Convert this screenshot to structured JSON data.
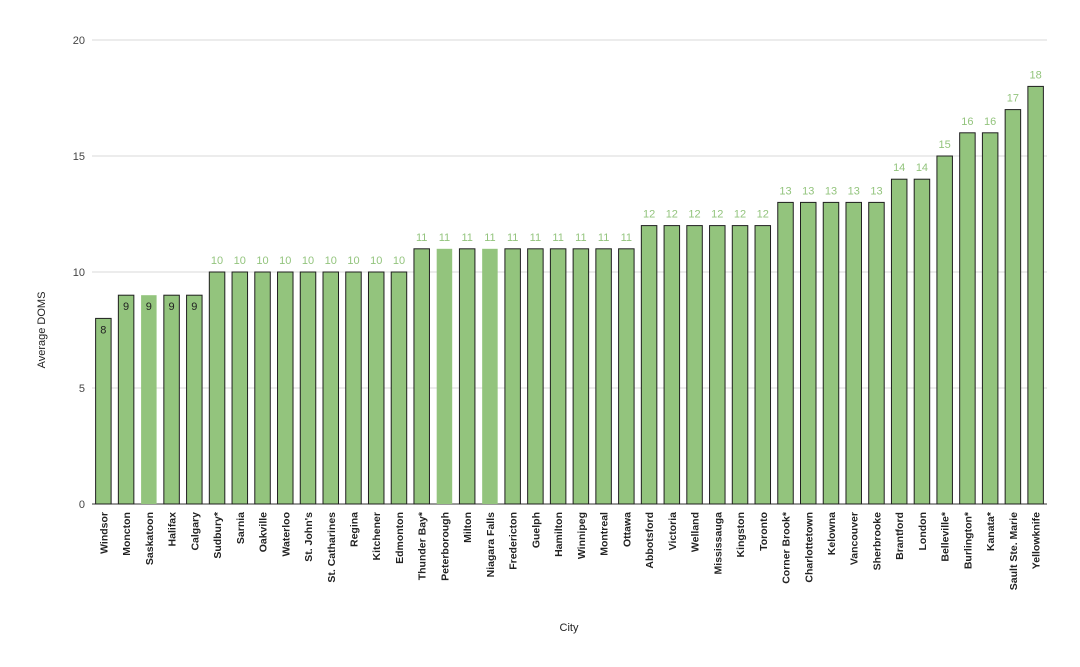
{
  "chart_data": {
    "type": "bar",
    "title": "",
    "xlabel": "City",
    "ylabel": "Average DOMS",
    "ylim": [
      0,
      20
    ],
    "yticks": [
      0,
      5,
      10,
      15,
      20
    ],
    "grid": true,
    "bar_color": "#93c47d",
    "bar_border_color": "#1f1f1f",
    "label_color_outside": "#93c47d",
    "label_color_inside": "#222222",
    "categories": [
      "Windsor",
      "Moncton",
      "Saskatoon",
      "Halifax",
      "Calgary",
      "Sudbury*",
      "Sarnia",
      "Oakville",
      "Waterloo",
      "St. John's",
      "St. Catharines",
      "Regina",
      "Kitchener",
      "Edmonton",
      "Thunder Bay*",
      "Peterborough",
      "Milton",
      "Niagara Falls",
      "Fredericton",
      "Guelph",
      "Hamilton",
      "Winnipeg",
      "Montreal",
      "Ottawa",
      "Abbotsford",
      "Victoria",
      "Welland",
      "Mississauga",
      "Kingston",
      "Toronto",
      "Corner Brook*",
      "Charlottetown",
      "Kelowna",
      "Vancouver",
      "Sherbrooke",
      "Brantford",
      "London",
      "Belleville*",
      "Burlington*",
      "Kanata*",
      "Sault Ste. Marie",
      "Yellowknife"
    ],
    "values": [
      8,
      9,
      9,
      9,
      9,
      10,
      10,
      10,
      10,
      10,
      10,
      10,
      10,
      10,
      11,
      11,
      11,
      11,
      11,
      11,
      11,
      11,
      11,
      11,
      12,
      12,
      12,
      12,
      12,
      12,
      13,
      13,
      13,
      13,
      13,
      14,
      14,
      15,
      16,
      16,
      17,
      18
    ],
    "outlined": [
      true,
      true,
      false,
      true,
      true,
      true,
      true,
      true,
      true,
      true,
      true,
      true,
      true,
      true,
      true,
      false,
      true,
      false,
      true,
      true,
      true,
      true,
      true,
      true,
      true,
      true,
      true,
      true,
      true,
      true,
      true,
      true,
      true,
      true,
      true,
      true,
      true,
      true,
      true,
      true,
      true,
      true
    ],
    "label_inside": [
      true,
      true,
      true,
      true,
      true,
      false,
      false,
      false,
      false,
      false,
      false,
      false,
      false,
      false,
      false,
      false,
      false,
      false,
      false,
      false,
      false,
      false,
      false,
      false,
      false,
      false,
      false,
      false,
      false,
      false,
      false,
      false,
      false,
      false,
      false,
      false,
      false,
      false,
      false,
      false,
      false,
      false
    ]
  }
}
